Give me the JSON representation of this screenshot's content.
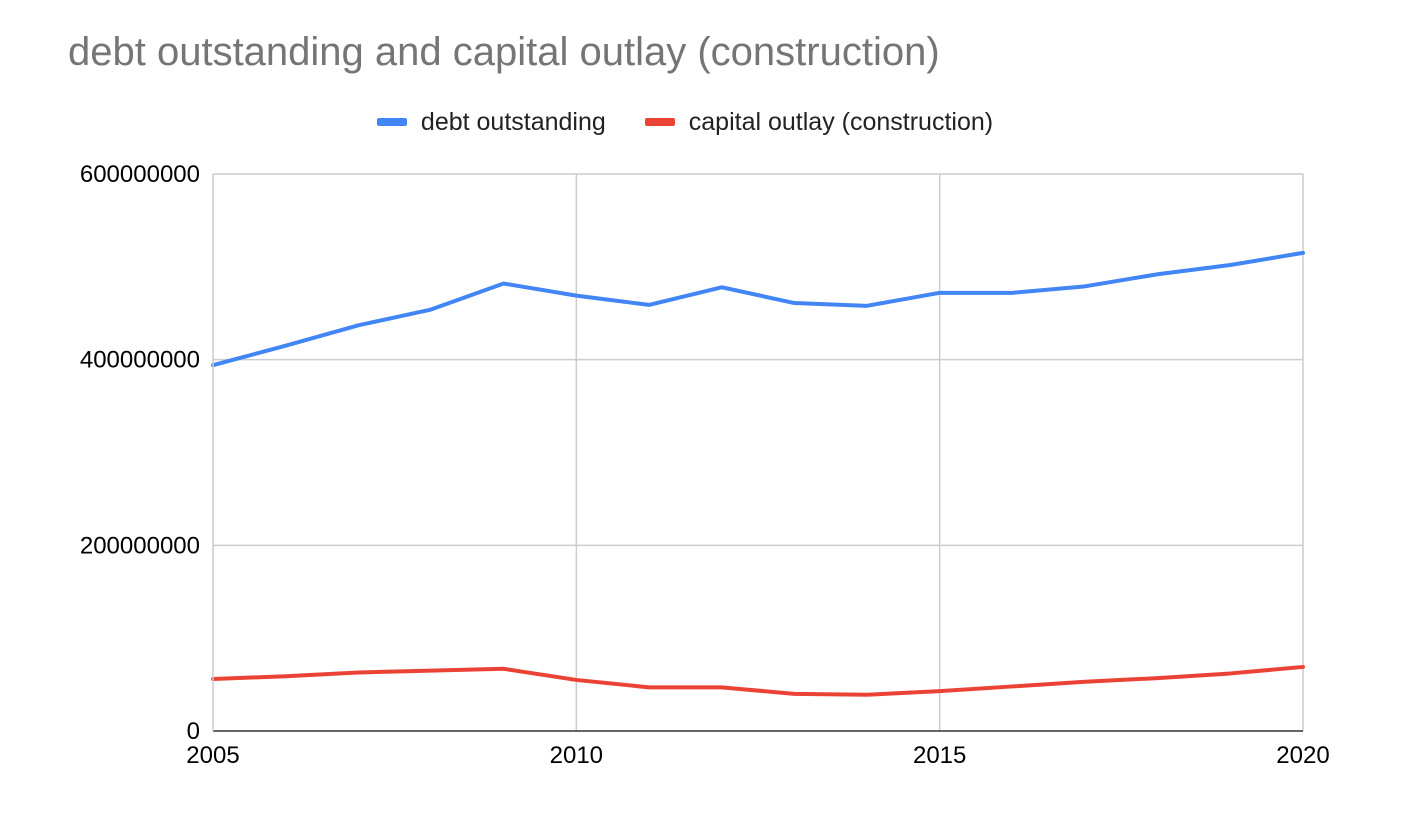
{
  "chart_data": {
    "type": "line",
    "title": "debt outstanding and capital outlay (construction)",
    "xlabel": "",
    "ylabel": "",
    "x": [
      2005,
      2006,
      2007,
      2008,
      2009,
      2010,
      2011,
      2012,
      2013,
      2014,
      2015,
      2016,
      2017,
      2018,
      2019,
      2020
    ],
    "xlim": [
      2005,
      2020
    ],
    "ylim": [
      0,
      600000000
    ],
    "x_ticks": [
      "2005",
      "2010",
      "2015",
      "2020"
    ],
    "y_ticks": [
      "0",
      "200000000",
      "400000000",
      "600000000"
    ],
    "grid": true,
    "legend_position": "top",
    "series": [
      {
        "name": "debt outstanding",
        "color": "#4285f4",
        "values": [
          394000000,
          415000000,
          437000000,
          454000000,
          482000000,
          469000000,
          459000000,
          478000000,
          461000000,
          458000000,
          472000000,
          472000000,
          479000000,
          492000000,
          502000000,
          515000000
        ]
      },
      {
        "name": "capital outlay (construction)",
        "color": "#ea4335",
        "values": [
          56000000,
          59000000,
          63000000,
          65000000,
          67000000,
          55000000,
          47000000,
          47000000,
          40000000,
          39000000,
          43000000,
          48000000,
          53000000,
          57000000,
          62000000,
          69000000
        ]
      }
    ]
  }
}
